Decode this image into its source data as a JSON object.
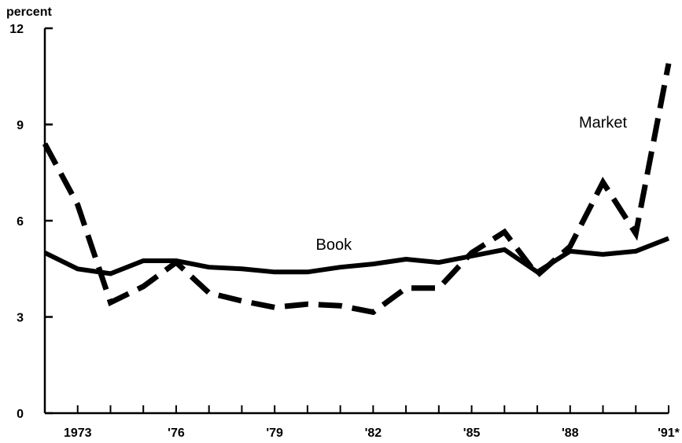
{
  "chart_data": {
    "type": "line",
    "title": "",
    "xlabel": "",
    "ylabel": "percent",
    "ylim": [
      0,
      12
    ],
    "xlim": [
      1972,
      1991
    ],
    "y_ticks": [
      0,
      3,
      6,
      9,
      12
    ],
    "x_tick_labels": [
      {
        "x": 1973,
        "label": "1973"
      },
      {
        "x": 1976,
        "label": "'76"
      },
      {
        "x": 1979,
        "label": "'79"
      },
      {
        "x": 1982,
        "label": "'82"
      },
      {
        "x": 1985,
        "label": "'85"
      },
      {
        "x": 1988,
        "label": "'88"
      },
      {
        "x": 1991,
        "label": "'91*"
      }
    ],
    "x": [
      1972,
      1973,
      1974,
      1975,
      1976,
      1977,
      1978,
      1979,
      1980,
      1981,
      1982,
      1983,
      1984,
      1985,
      1986,
      1987,
      1988,
      1989,
      1990,
      1991
    ],
    "grid": false,
    "legend": "none",
    "series": [
      {
        "name": "Book",
        "style": "solid",
        "color": "#000000",
        "values": [
          5.0,
          4.5,
          4.35,
          4.75,
          4.75,
          4.55,
          4.5,
          4.4,
          4.4,
          4.55,
          4.65,
          4.8,
          4.7,
          4.9,
          5.1,
          4.4,
          5.05,
          4.95,
          5.05,
          5.45
        ]
      },
      {
        "name": "Market",
        "style": "dashed",
        "color": "#000000",
        "values": [
          8.4,
          6.5,
          3.45,
          3.95,
          4.7,
          3.75,
          3.5,
          3.3,
          3.4,
          3.35,
          3.15,
          3.9,
          3.9,
          5.0,
          5.65,
          4.3,
          5.2,
          7.2,
          5.6,
          10.9
        ]
      }
    ],
    "annotations": [
      {
        "text": "Book",
        "series": "Book",
        "x": 1980.8,
        "y": 5.1
      },
      {
        "text": "Market",
        "series": "Market",
        "x": 1989.0,
        "y": 8.9
      }
    ]
  }
}
